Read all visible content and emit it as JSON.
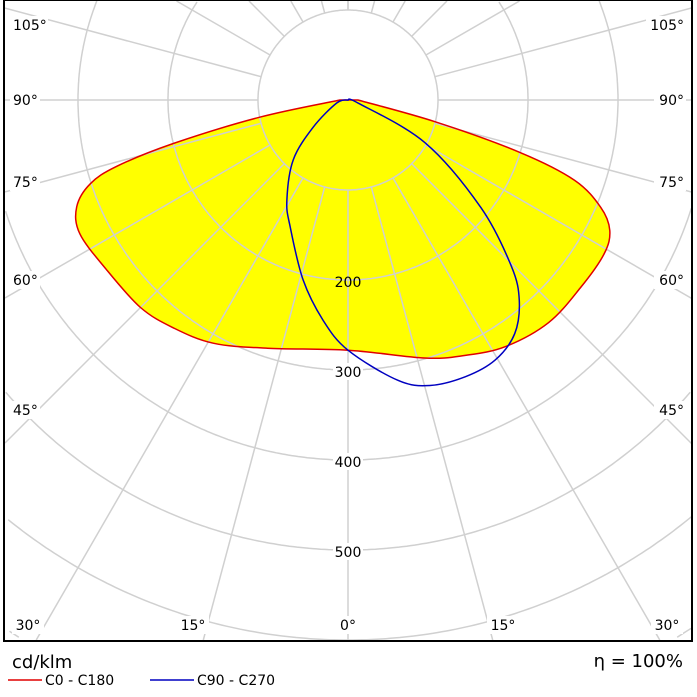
{
  "chart_data": {
    "type": "polar",
    "unit": "cd/klm",
    "efficiency": "η = 100%",
    "radial_ticks": [
      100,
      200,
      300,
      400,
      500,
      600,
      700
    ],
    "radial_tick_labels": [
      "200",
      "300",
      "400",
      "500"
    ],
    "angle_step_deg": 15,
    "side_angle_labels": [
      "105°",
      "90°",
      "75°",
      "60°",
      "45°"
    ],
    "bottom_angle_labels": [
      "30°",
      "15°",
      "0°",
      "15°",
      "30°"
    ],
    "angle_convention": "0° points down; negative angles to the left, positive to the right",
    "grid": true,
    "colors": {
      "fill": "#ffff00",
      "c0": "#e00000",
      "c90": "#0000c0",
      "grid": "#d0d0d0"
    },
    "series": [
      {
        "name": "C0 - C180",
        "filled": true,
        "points": [
          [
            -90,
            9
          ],
          [
            -79,
            100
          ],
          [
            -76,
            200
          ],
          [
            -74,
            267
          ],
          [
            -72,
            301
          ],
          [
            -68.5,
            324
          ],
          [
            -63.5,
            333
          ],
          [
            -55,
            328
          ],
          [
            -45,
            326
          ],
          [
            -37.5,
            319
          ],
          [
            -29,
            309
          ],
          [
            -18,
            290
          ],
          [
            0,
            278
          ],
          [
            16.5,
            299
          ],
          [
            24.5,
            312
          ],
          [
            32.5,
            325
          ],
          [
            42,
            333
          ],
          [
            51,
            332
          ],
          [
            59,
            332
          ],
          [
            63.5,
            325
          ],
          [
            67,
            305
          ],
          [
            70.5,
            267
          ],
          [
            73,
            201
          ],
          [
            76,
            100
          ],
          [
            90,
            11
          ]
        ]
      },
      {
        "name": "C90 - C270",
        "filled": false,
        "points": [
          [
            -90,
            0
          ],
          [
            -75,
            13
          ],
          [
            -52,
            49
          ],
          [
            -42.5,
            90
          ],
          [
            -31.5,
            130
          ],
          [
            -24.5,
            155
          ],
          [
            -14,
            206
          ],
          [
            -6.5,
            246
          ],
          [
            0,
            278
          ],
          [
            10,
            316
          ],
          [
            16,
            330
          ],
          [
            23,
            334
          ],
          [
            29.5,
            332
          ],
          [
            35.5,
            319
          ],
          [
            40.5,
            293
          ],
          [
            44.5,
            259
          ],
          [
            51,
            190
          ],
          [
            61,
            98
          ],
          [
            73,
            12
          ],
          [
            90,
            0
          ]
        ]
      }
    ]
  }
}
